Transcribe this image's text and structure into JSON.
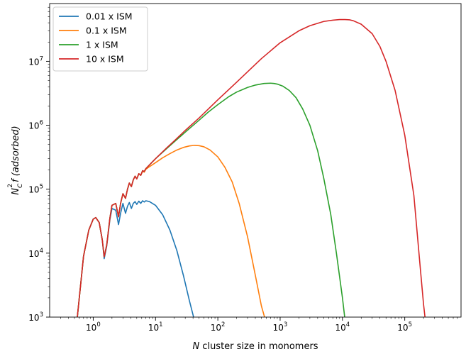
{
  "chart_data": {
    "type": "line",
    "title": "",
    "xlabel_italic": "N",
    "xlabel_rest": " cluster size in monomers",
    "ylabel_base": "N",
    "ylabel_sub": "C",
    "ylabel_sup": "2",
    "ylabel_rest": "f (adsorbed)",
    "xscale": "log",
    "yscale": "log",
    "xlim": [
      0.2,
      800000
    ],
    "ylim": [
      1000,
      80000000
    ],
    "grid": false,
    "legend_position": "upper-left",
    "xticks": [
      {
        "base": "10",
        "exp": "0",
        "value": 1
      },
      {
        "base": "10",
        "exp": "1",
        "value": 10
      },
      {
        "base": "10",
        "exp": "2",
        "value": 100
      },
      {
        "base": "10",
        "exp": "3",
        "value": 1000
      },
      {
        "base": "10",
        "exp": "4",
        "value": 10000
      },
      {
        "base": "10",
        "exp": "5",
        "value": 100000
      }
    ],
    "yticks": [
      {
        "base": "10",
        "exp": "3",
        "value": 1000
      },
      {
        "base": "10",
        "exp": "4",
        "value": 10000
      },
      {
        "base": "10",
        "exp": "5",
        "value": 100000
      },
      {
        "base": "10",
        "exp": "6",
        "value": 1000000
      },
      {
        "base": "10",
        "exp": "7",
        "value": 10000000
      }
    ],
    "series": [
      {
        "name": "0.01 x ISM",
        "color": "#1f77b4",
        "x": [
          0.55,
          0.7,
          0.85,
          1.0,
          1.1,
          1.25,
          1.4,
          1.5,
          1.65,
          1.85,
          2.0,
          2.3,
          2.55,
          2.75,
          3.0,
          3.3,
          3.55,
          3.8,
          4.1,
          4.4,
          4.7,
          5.0,
          5.4,
          5.8,
          6.2,
          6.6,
          7.0,
          8,
          10,
          13,
          17,
          22,
          28,
          35,
          42,
          48
        ],
        "y": [
          900,
          9000,
          23000,
          34000,
          36000,
          30000,
          16000,
          8200,
          13000,
          33000,
          50000,
          47000,
          28000,
          42000,
          60000,
          42000,
          54000,
          62000,
          50000,
          60000,
          64000,
          58000,
          65000,
          60000,
          66000,
          63000,
          66000,
          64000,
          56000,
          40000,
          23000,
          11000,
          4500,
          1800,
          900,
          500
        ]
      },
      {
        "name": "0.1 x ISM",
        "color": "#ff7f0e",
        "x": [
          0.55,
          0.7,
          0.85,
          1.0,
          1.1,
          1.25,
          1.4,
          1.5,
          1.65,
          1.85,
          2.0,
          2.3,
          2.55,
          2.75,
          3.0,
          3.3,
          3.55,
          3.8,
          4.1,
          4.4,
          4.7,
          5.0,
          5.4,
          5.8,
          6.2,
          6.6,
          7.0,
          8,
          10,
          13,
          17,
          22,
          28,
          35,
          42,
          50,
          60,
          75,
          100,
          130,
          170,
          220,
          300,
          400,
          500,
          600,
          700
        ],
        "y": [
          900,
          9000,
          23000,
          34000,
          36000,
          30000,
          16000,
          8800,
          13500,
          35000,
          56000,
          60000,
          37000,
          60000,
          85000,
          72000,
          100000,
          125000,
          110000,
          140000,
          160000,
          145000,
          175000,
          165000,
          190000,
          185000,
          205000,
          225000,
          260000,
          310000,
          360000,
          410000,
          450000,
          475000,
          485000,
          480000,
          460000,
          410000,
          320000,
          220000,
          130000,
          60000,
          18000,
          4500,
          1500,
          800,
          400
        ]
      },
      {
        "name": "1 x ISM",
        "color": "#2ca02c",
        "x": [
          0.55,
          0.7,
          0.85,
          1.0,
          1.1,
          1.25,
          1.4,
          1.5,
          1.65,
          1.85,
          2.0,
          2.3,
          2.55,
          2.75,
          3.0,
          3.3,
          3.55,
          3.8,
          4.1,
          4.4,
          4.7,
          5.0,
          5.4,
          5.8,
          6.2,
          6.6,
          7.0,
          8,
          10,
          15,
          20,
          30,
          50,
          70,
          100,
          150,
          200,
          300,
          400,
          550,
          700,
          800,
          900,
          1100,
          1400,
          1800,
          2300,
          3000,
          4000,
          5000,
          6500,
          8000,
          10000,
          11000,
          12000
        ],
        "y": [
          900,
          9000,
          23000,
          34000,
          36000,
          30000,
          16000,
          8800,
          13500,
          35000,
          56000,
          60000,
          37000,
          60000,
          85000,
          72000,
          100000,
          125000,
          110000,
          140000,
          160000,
          145000,
          175000,
          165000,
          195000,
          190000,
          210000,
          240000,
          300000,
          430000,
          550000,
          780000,
          1200000,
          1600000,
          2100000,
          2800000,
          3300000,
          3900000,
          4250000,
          4500000,
          4550000,
          4500000,
          4400000,
          4100000,
          3500000,
          2700000,
          1800000,
          1000000,
          400000,
          150000,
          40000,
          10000,
          2000,
          900,
          500
        ]
      },
      {
        "name": "10 x ISM",
        "color": "#d62728",
        "x": [
          0.55,
          0.7,
          0.85,
          1.0,
          1.1,
          1.25,
          1.4,
          1.5,
          1.65,
          1.85,
          2.0,
          2.3,
          2.55,
          2.75,
          3.0,
          3.3,
          3.55,
          3.8,
          4.1,
          4.4,
          4.7,
          5.0,
          5.4,
          5.8,
          6.2,
          6.6,
          7.0,
          8,
          10,
          15,
          20,
          30,
          50,
          100,
          200,
          500,
          1000,
          2000,
          3000,
          5000,
          7000,
          9000,
          11000,
          13000,
          15000,
          20000,
          30000,
          40000,
          50000,
          70000,
          100000,
          140000,
          180000,
          200000,
          220000
        ],
        "y": [
          900,
          9000,
          23000,
          34000,
          36000,
          30000,
          16000,
          8800,
          13500,
          35000,
          56000,
          60000,
          37000,
          60000,
          85000,
          72000,
          100000,
          125000,
          110000,
          140000,
          160000,
          145000,
          175000,
          165000,
          195000,
          190000,
          210000,
          240000,
          300000,
          440000,
          570000,
          830000,
          1300000,
          2500000,
          4700000,
          11000000,
          19500000,
          30000000,
          36000000,
          42000000,
          44000000,
          45000000,
          45000000,
          44500000,
          43000000,
          38000000,
          27000000,
          17000000,
          10000000,
          3500000,
          700000,
          80000,
          5000,
          1600,
          700
        ]
      }
    ]
  }
}
